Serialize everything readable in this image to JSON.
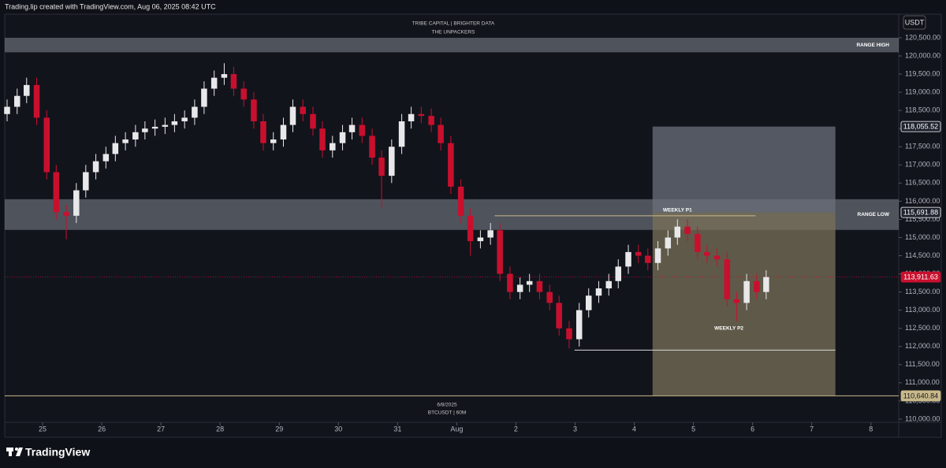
{
  "header": "Trading.lip created with TradingView.com, Aug 06, 2025 08:42 UTC",
  "brand": "TradingView",
  "chart_data": {
    "type": "candlestick",
    "title": "TRIBE CAPITAL | BRIGHTER DATA",
    "subtitle": "THE UNPACKERS",
    "currency": "USDT",
    "date_label": "6/8/2025",
    "symbol_label": "BTCUSDT | 60M",
    "up_color": "#e8e8ea",
    "down_color": "#c8102e",
    "x": [
      -0.6,
      -0.43,
      -0.27,
      -0.1,
      0.07,
      0.23,
      0.4,
      0.57,
      0.73,
      0.9,
      1.07,
      1.23,
      1.4,
      1.57,
      1.73,
      1.9,
      2.07,
      2.23,
      2.4,
      2.57,
      2.73,
      2.9,
      3.07,
      3.23,
      3.4,
      3.57,
      3.73,
      3.9,
      4.07,
      4.23,
      4.4,
      4.57,
      4.73,
      4.9,
      5.07,
      5.23,
      5.4,
      5.57,
      5.73,
      5.9,
      6.07,
      6.23,
      6.4,
      6.57,
      6.73,
      6.9,
      7.07,
      7.23,
      7.4,
      7.57,
      7.73,
      7.9,
      8.07,
      8.23,
      8.4,
      8.57,
      8.73,
      8.9,
      9.07,
      9.23,
      9.4,
      9.57,
      9.73,
      9.9,
      10.07,
      10.23,
      10.4,
      10.57,
      10.73,
      10.9,
      11.07,
      11.23,
      11.4,
      11.57,
      11.73,
      11.9,
      12.07,
      12.23
    ],
    "open": [
      118400,
      118600,
      118900,
      119200,
      118300,
      116800,
      115700,
      115600,
      116300,
      116800,
      117100,
      117300,
      117600,
      117700,
      117900,
      118000,
      118050,
      118100,
      118200,
      118300,
      118600,
      119100,
      119400,
      119500,
      119100,
      118800,
      118200,
      117600,
      117700,
      118100,
      118600,
      118400,
      118000,
      117400,
      117600,
      117900,
      118100,
      117800,
      117200,
      116700,
      117500,
      118200,
      118400,
      118350,
      118100,
      117600,
      116400,
      115600,
      114900,
      115000,
      115200,
      114000,
      113500,
      113700,
      113800,
      113500,
      113200,
      112500,
      112200,
      113000,
      113400,
      113600,
      113800,
      114200,
      114600,
      114500,
      114300,
      114700,
      115000,
      115300,
      115100,
      114600,
      114500,
      114400,
      113300,
      113200,
      113800,
      113500
    ],
    "high": [
      118800,
      119100,
      119400,
      119400,
      118500,
      117000,
      115900,
      116500,
      117000,
      117300,
      117500,
      117800,
      117900,
      118100,
      118200,
      118250,
      118300,
      118400,
      118500,
      118800,
      119300,
      119600,
      119800,
      119700,
      119300,
      119000,
      118400,
      117900,
      118300,
      118800,
      118800,
      118600,
      118200,
      117800,
      118100,
      118300,
      118300,
      118000,
      117400,
      117700,
      118400,
      118600,
      118600,
      118550,
      118300,
      117800,
      116600,
      115800,
      115200,
      115400,
      115400,
      114200,
      113900,
      114000,
      114000,
      113700,
      113400,
      112700,
      113200,
      113600,
      113800,
      114000,
      114400,
      114800,
      114800,
      114700,
      114900,
      115200,
      115500,
      115500,
      115300,
      114800,
      114700,
      114600,
      113500,
      114000,
      114000,
      114100
    ],
    "low": [
      118200,
      118400,
      118700,
      118100,
      116600,
      115500,
      114950,
      115400,
      116100,
      116600,
      116900,
      117100,
      117400,
      117500,
      117700,
      117800,
      117850,
      117900,
      118000,
      118100,
      118400,
      118900,
      119200,
      118900,
      118600,
      118000,
      117400,
      117400,
      117500,
      117900,
      118200,
      117800,
      117200,
      117200,
      117400,
      117700,
      117600,
      117000,
      115800,
      116500,
      117300,
      118000,
      118150,
      117900,
      117400,
      116200,
      115400,
      114500,
      114700,
      114800,
      113800,
      113300,
      113300,
      113500,
      113300,
      113000,
      112300,
      111950,
      112000,
      112800,
      113200,
      113400,
      113600,
      114000,
      114300,
      114100,
      114100,
      114500,
      114800,
      114900,
      114400,
      114300,
      114200,
      113100,
      112700,
      113000,
      113300,
      113300
    ],
    "close": [
      118600,
      118900,
      119200,
      118300,
      116800,
      115700,
      115600,
      116300,
      116800,
      117100,
      117300,
      117600,
      117700,
      117900,
      118000,
      118050,
      118100,
      118200,
      118300,
      118600,
      119100,
      119400,
      119500,
      119100,
      118800,
      118200,
      117600,
      117700,
      118100,
      118600,
      118400,
      118000,
      117400,
      117600,
      117900,
      118100,
      117800,
      117200,
      116700,
      117500,
      118200,
      118400,
      118350,
      118100,
      117600,
      116400,
      115600,
      114900,
      115000,
      115200,
      114000,
      113500,
      113700,
      113800,
      113500,
      113200,
      112500,
      112200,
      113000,
      113400,
      113600,
      113800,
      114200,
      114600,
      114500,
      114300,
      114700,
      115000,
      115300,
      115100,
      114600,
      114500,
      114400,
      113300,
      113200,
      113800,
      113500,
      113911.63
    ],
    "xlim": [
      -0.64,
      14.47
    ],
    "ylim": [
      109500,
      121150
    ],
    "xticks": [
      {
        "value": 0,
        "label": "25"
      },
      {
        "value": 1,
        "label": "26"
      },
      {
        "value": 2,
        "label": "27"
      },
      {
        "value": 3,
        "label": "28"
      },
      {
        "value": 4,
        "label": "29"
      },
      {
        "value": 5,
        "label": "30"
      },
      {
        "value": 6,
        "label": "31"
      },
      {
        "value": 7,
        "label": "Aug"
      },
      {
        "value": 8,
        "label": "2"
      },
      {
        "value": 9,
        "label": "3"
      },
      {
        "value": 10,
        "label": "4"
      },
      {
        "value": 11,
        "label": "5"
      },
      {
        "value": 12,
        "label": "6"
      },
      {
        "value": 13,
        "label": "7"
      },
      {
        "value": 14,
        "label": "8"
      }
    ],
    "yticks": [
      {
        "value": 110000,
        "label": "110,000.00"
      },
      {
        "value": 110500,
        "label": "110,500.00"
      },
      {
        "value": 111000,
        "label": "111,000.00"
      },
      {
        "value": 111500,
        "label": "111,500.00"
      },
      {
        "value": 112000,
        "label": "112,000.00"
      },
      {
        "value": 112500,
        "label": "112,500.00"
      },
      {
        "value": 113000,
        "label": "113,000.00"
      },
      {
        "value": 113500,
        "label": "113,500.00"
      },
      {
        "value": 114000,
        "label": "114,000.00"
      },
      {
        "value": 114500,
        "label": "114,500.00"
      },
      {
        "value": 115000,
        "label": "115,000.00"
      },
      {
        "value": 115500,
        "label": "115,500.00"
      },
      {
        "value": 116000,
        "label": "116,000.00"
      },
      {
        "value": 116500,
        "label": "116,500.00"
      },
      {
        "value": 117000,
        "label": "117,000.00"
      },
      {
        "value": 117500,
        "label": "117,500.00"
      },
      {
        "value": 118000,
        "label": "118,000.00"
      },
      {
        "value": 118500,
        "label": "118,500.00"
      },
      {
        "value": 119000,
        "label": "119,000.00"
      },
      {
        "value": 119500,
        "label": "119,500.00"
      },
      {
        "value": 120000,
        "label": "120,000.00"
      },
      {
        "value": 120500,
        "label": "120,500.00"
      }
    ],
    "zones": [
      {
        "label": "RANGE HIGH",
        "from": 120100,
        "to": 120500
      },
      {
        "label": "RANGE LOW",
        "from": 115210,
        "to": 116055
      }
    ],
    "boxes": [
      {
        "x0": 10.31,
        "x1": 13.4,
        "from": 115691.88,
        "to": 118055.52,
        "color": "#6b6f7a"
      },
      {
        "x0": 10.31,
        "x1": 13.4,
        "from": 110640.84,
        "to": 115691.88,
        "color": "#7a7058"
      }
    ],
    "levels": [
      {
        "x0": 7.64,
        "x1": 12.05,
        "value": 115600,
        "color": "#c9b98a"
      },
      {
        "x0": 8.99,
        "x1": 13.4,
        "value": 111900,
        "color": "#d8d8d8"
      },
      {
        "x0": -0.64,
        "x1": 14.47,
        "value": 110640.84,
        "color": "#c9b98a"
      }
    ],
    "notes": [
      {
        "text": "WEEKLY P1",
        "x": 10.73,
        "value": 115750
      },
      {
        "text": "WEEKLY P2",
        "x": 11.6,
        "value": 112500
      }
    ],
    "price_tags": [
      {
        "value": 118055.52,
        "label": "118,055.52",
        "color": "#1e222d",
        "border": "#ffffff",
        "text_color": "#ffffff"
      },
      {
        "value": 115691.88,
        "label": "115,691.88",
        "color": "#1e222d",
        "border": "#ffffff",
        "text_color": "#ffffff"
      },
      {
        "value": 113911.63,
        "label": "113,911.63",
        "color": "#c8102e",
        "border": "#c8102e",
        "text_color": "#ffffff"
      },
      {
        "value": 110640.84,
        "label": "110,640.84",
        "color": "#c9b98a",
        "border": "#c9b98a",
        "text_color": "#131722"
      }
    ]
  }
}
